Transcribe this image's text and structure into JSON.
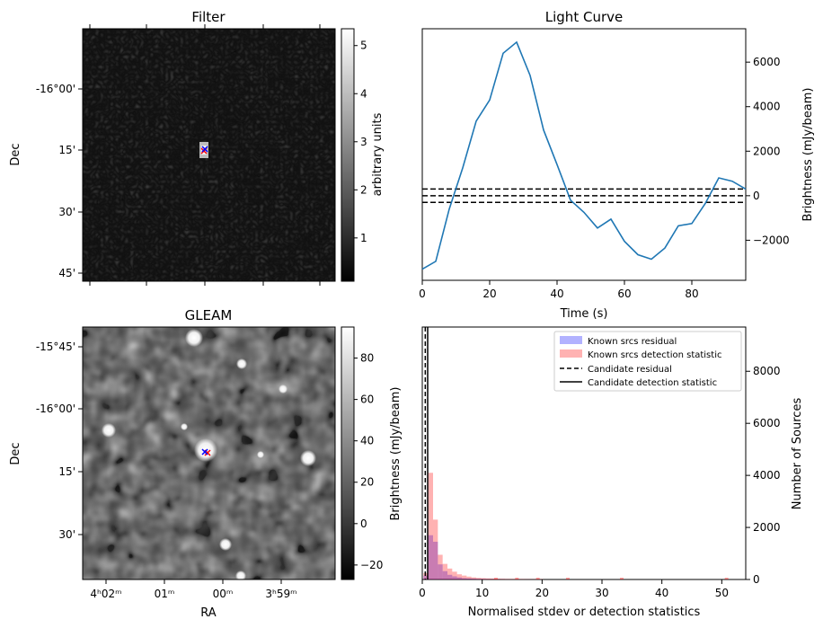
{
  "chart_data": [
    {
      "type": "heatmap",
      "title": "Filter",
      "xlabel": "",
      "ylabel": "Dec",
      "y_ticks": [
        "-16°00'",
        "15'",
        "30'",
        "45'"
      ],
      "colorbar": {
        "label": "arbitrary units",
        "ticks": [
          "1",
          "2",
          "3",
          "4",
          "5"
        ],
        "range": [
          0.1,
          5.35
        ]
      },
      "markers": [
        "x-blue",
        "x-red"
      ]
    },
    {
      "type": "line",
      "title": "Light Curve",
      "xlabel": "Time (s)",
      "ylabel": "Brightness (mJy/beam)",
      "x_ticks": [
        "0",
        "20",
        "40",
        "60",
        "80"
      ],
      "y_ticks": [
        "−2000",
        "0",
        "2000",
        "4000",
        "6000"
      ],
      "xlim": [
        0,
        96
      ],
      "ylim": [
        -3800,
        7500
      ],
      "color": "#1f77b4",
      "x": [
        0,
        4,
        8,
        12,
        16,
        20,
        24,
        28,
        32,
        36,
        40,
        44,
        48,
        52,
        56,
        60,
        64,
        68,
        72,
        76,
        80,
        84,
        88,
        92,
        96
      ],
      "y": [
        -3300,
        -2950,
        -600,
        1250,
        3350,
        4300,
        6400,
        6900,
        5400,
        2950,
        1400,
        -200,
        -750,
        -1450,
        -1050,
        -2050,
        -2650,
        -2850,
        -2350,
        -1350,
        -1250,
        -350,
        800,
        650,
        300
      ],
      "hlines": [
        300,
        0,
        -300
      ]
    },
    {
      "type": "heatmap",
      "title": "GLEAM",
      "xlabel": "RA",
      "ylabel": "Dec",
      "x_ticks": [
        "4ʰ02ᵐ",
        "01ᵐ",
        "00ᵐ",
        "3ʰ59ᵐ"
      ],
      "y_ticks": [
        "-15°45'",
        "-16°00'",
        "15'",
        "30'"
      ],
      "colorbar": {
        "label": "",
        "ticks": [
          "−20",
          "0",
          "20",
          "40",
          "60",
          "80"
        ],
        "range": [
          -27,
          95
        ]
      },
      "markers": [
        "x-blue",
        "x-red"
      ]
    },
    {
      "type": "bar",
      "title": "",
      "xlabel": "Normalised stdev or detection statistics",
      "ylabel": "Number of Sources",
      "ylabel_left": "Brightness (mJy/beam)",
      "x_ticks": [
        "0",
        "10",
        "20",
        "30",
        "40",
        "50"
      ],
      "y_ticks": [
        "0",
        "2000",
        "4000",
        "6000",
        "8000"
      ],
      "xlim": [
        0,
        54
      ],
      "ylim": [
        0,
        9700
      ],
      "bin_width": 0.8,
      "bin_start": 0.2,
      "series": [
        {
          "name": "Known srcs residual",
          "color": "#0000ff",
          "values": [
            150,
            1700,
            1450,
            580,
            320,
            180,
            120,
            80,
            50,
            40,
            30,
            22,
            18,
            12,
            10,
            8,
            6,
            5,
            4,
            3,
            3,
            2,
            2,
            2,
            1
          ]
        },
        {
          "name": "Known srcs detection statistic",
          "color": "#ff0000",
          "values": [
            250,
            4100,
            2300,
            950,
            600,
            420,
            300,
            200,
            150,
            110,
            80,
            60,
            50,
            40,
            35,
            30,
            25,
            20,
            18,
            15,
            15,
            12,
            10,
            10,
            10
          ]
        }
      ],
      "vlines": [
        {
          "name": "Candidate residual",
          "x": 0.5,
          "style": "dashed"
        },
        {
          "name": "Candidate detection statistic",
          "x": 0.9,
          "style": "solid"
        }
      ]
    }
  ]
}
